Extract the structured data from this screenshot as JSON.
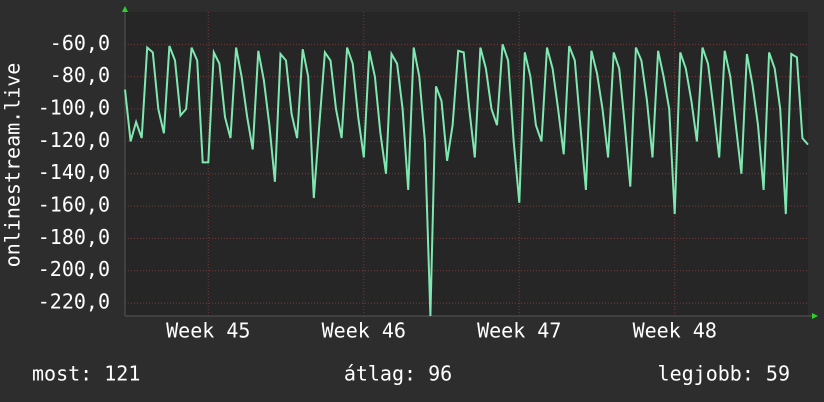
{
  "chart_data": {
    "type": "line",
    "y_label": "onlinestream.live",
    "ylim": [
      -228,
      -40
    ],
    "yticks": [
      {
        "value": -60,
        "label": "-60,0"
      },
      {
        "value": -80,
        "label": "-80,0"
      },
      {
        "value": -100,
        "label": "-100,0"
      },
      {
        "value": -120,
        "label": "-120,0"
      },
      {
        "value": -140,
        "label": "-140,0"
      },
      {
        "value": -160,
        "label": "-160,0"
      },
      {
        "value": -180,
        "label": "-180,0"
      },
      {
        "value": -200,
        "label": "-200,0"
      },
      {
        "value": -220,
        "label": "-220,0"
      }
    ],
    "xlim": [
      0,
      123
    ],
    "xticks": [
      {
        "value": 15,
        "label": "Week 45"
      },
      {
        "value": 43,
        "label": "Week 46"
      },
      {
        "value": 71,
        "label": "Week 47"
      },
      {
        "value": 99,
        "label": "Week 48"
      }
    ],
    "grid": true,
    "series": [
      {
        "color": "#7ee8b0",
        "values": [
          -88,
          -120,
          -108,
          -118,
          -62,
          -65,
          -100,
          -115,
          -61,
          -70,
          -104,
          -100,
          -62,
          -70,
          -133,
          -133,
          -65,
          -72,
          -105,
          -118,
          -62,
          -80,
          -105,
          -125,
          -64,
          -82,
          -110,
          -145,
          -66,
          -70,
          -103,
          -118,
          -63,
          -80,
          -155,
          -110,
          -65,
          -70,
          -100,
          -118,
          -62,
          -72,
          -105,
          -130,
          -64,
          -80,
          -115,
          -140,
          -66,
          -72,
          -100,
          -150,
          -62,
          -80,
          -120,
          -228,
          -86,
          -95,
          -132,
          -110,
          -64,
          -65,
          -100,
          -130,
          -62,
          -75,
          -100,
          -110,
          -60,
          -70,
          -120,
          -158,
          -65,
          -80,
          -110,
          -120,
          -62,
          -75,
          -100,
          -128,
          -61,
          -70,
          -110,
          -150,
          -64,
          -78,
          -100,
          -130,
          -65,
          -75,
          -110,
          -148,
          -62,
          -70,
          -95,
          -130,
          -64,
          -80,
          -100,
          -165,
          -65,
          -75,
          -95,
          -120,
          -62,
          -72,
          -100,
          -130,
          -64,
          -80,
          -110,
          -140,
          -66,
          -85,
          -110,
          -150,
          -65,
          -75,
          -100,
          -165,
          -66,
          -68,
          -118,
          -122
        ]
      }
    ],
    "footer": [
      "most: 121",
      "átlag: 96",
      "legjobb: 59"
    ]
  }
}
